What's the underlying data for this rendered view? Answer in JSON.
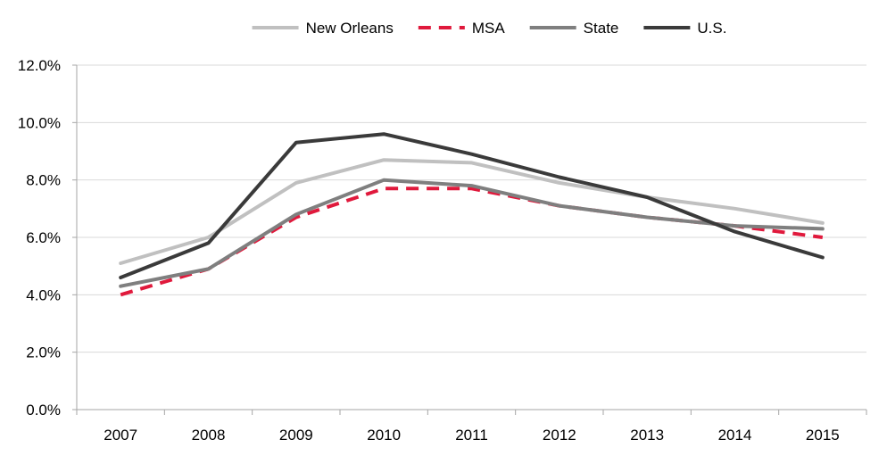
{
  "chart_data": {
    "type": "line",
    "title": "",
    "xlabel": "",
    "ylabel": "",
    "categories": [
      "2007",
      "2008",
      "2009",
      "2010",
      "2011",
      "2012",
      "2013",
      "2014",
      "2015"
    ],
    "ylim": [
      0,
      12
    ],
    "yticks": [
      0,
      2,
      4,
      6,
      8,
      10,
      12
    ],
    "ytick_labels": [
      "0.0%",
      "2.0%",
      "4.0%",
      "6.0%",
      "8.0%",
      "10.0%",
      "12.0%"
    ],
    "grid": "horizontal",
    "legend_position": "top-center",
    "series": [
      {
        "name": "New Orleans",
        "color": "#c0c0c0",
        "dashed": false,
        "values": [
          5.1,
          6.0,
          7.9,
          8.7,
          8.6,
          7.9,
          7.4,
          7.0,
          6.5
        ]
      },
      {
        "name": "MSA",
        "color": "#e0193c",
        "dashed": true,
        "values": [
          4.0,
          4.9,
          6.7,
          7.7,
          7.7,
          7.1,
          6.7,
          6.4,
          6.0
        ]
      },
      {
        "name": "State",
        "color": "#7f7f7f",
        "dashed": false,
        "values": [
          4.3,
          4.9,
          6.8,
          8.0,
          7.8,
          7.1,
          6.7,
          6.4,
          6.3
        ]
      },
      {
        "name": "U.S.",
        "color": "#3a3a3a",
        "dashed": false,
        "values": [
          4.6,
          5.8,
          9.3,
          9.6,
          8.9,
          8.1,
          7.4,
          6.2,
          5.3
        ]
      }
    ]
  }
}
